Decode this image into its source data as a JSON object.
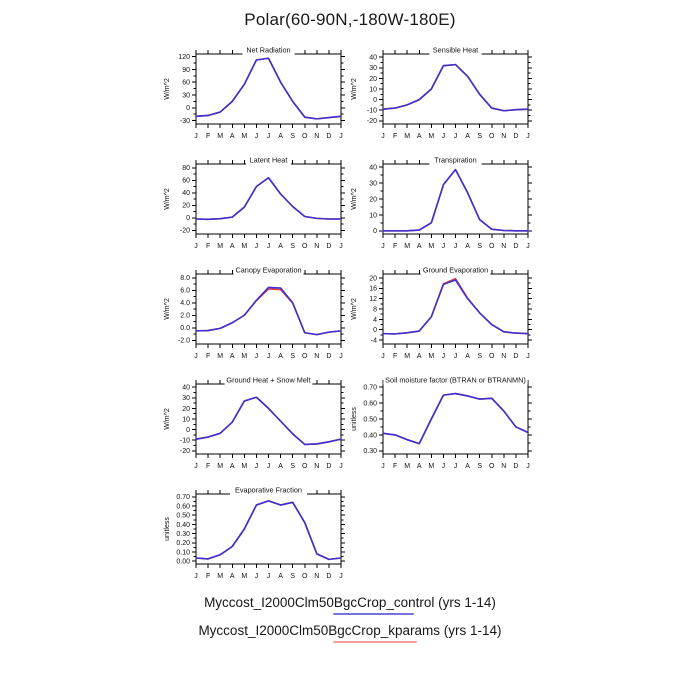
{
  "page": {
    "title": "Polar(60-90N,-180W-180E)",
    "background": "#ffffff"
  },
  "colors": {
    "control": "#3f2fd0",
    "kparams": "#e04040",
    "axis": "#000000"
  },
  "months": [
    "J",
    "F",
    "M",
    "A",
    "M",
    "J",
    "J",
    "A",
    "S",
    "O",
    "N",
    "D",
    "J"
  ],
  "legend": [
    {
      "label": "Myccost_I2000Clm50BgcCrop_control (yrs 1-14)",
      "line_color": "#7673e0"
    },
    {
      "label": "Myccost_I2000Clm50BgcCrop_kparams (yrs 1-14)",
      "line_color": "#ff9c9c"
    }
  ],
  "chart_data": [
    {
      "type": "line",
      "title": "Net Radiation",
      "ylabel": "W/m^2",
      "grid": {
        "row": 1,
        "col": 1
      },
      "ylim": [
        -38,
        126
      ],
      "yticks": [
        -30,
        0,
        30,
        60,
        90,
        120
      ],
      "ytick_labels": [
        "-30",
        "0",
        "30",
        "60",
        "90",
        "120"
      ],
      "series": [
        {
          "name": "control",
          "values": [
            -20,
            -18,
            -10,
            15,
            55,
            112,
            116,
            60,
            15,
            -22,
            -26,
            -23,
            -20
          ]
        },
        {
          "name": "kparams",
          "values": [
            -20,
            -18,
            -10,
            15,
            55,
            112,
            116,
            60,
            15,
            -22,
            -26,
            -23,
            -20
          ]
        }
      ]
    },
    {
      "type": "line",
      "title": "Sensible Heat",
      "ylabel": "W/m^2",
      "grid": {
        "row": 1,
        "col": 2
      },
      "ylim": [
        -23,
        43
      ],
      "yticks": [
        -20,
        -10,
        0,
        10,
        20,
        30,
        40
      ],
      "ytick_labels": [
        "-20",
        "-10",
        "0",
        "10",
        "20",
        "30",
        "40"
      ],
      "series": [
        {
          "name": "control",
          "values": [
            -9,
            -8,
            -5,
            0,
            10,
            32,
            33,
            22,
            5,
            -8,
            -10.5,
            -9.5,
            -9
          ]
        },
        {
          "name": "kparams",
          "values": [
            -9,
            -8,
            -5,
            0,
            10,
            32,
            33,
            22,
            5,
            -8,
            -10.5,
            -9.5,
            -9
          ]
        }
      ]
    },
    {
      "type": "line",
      "title": "Latent Heat",
      "ylabel": "W/m^2",
      "grid": {
        "row": 2,
        "col": 1
      },
      "ylim": [
        -26,
        86
      ],
      "yticks": [
        -20,
        0,
        20,
        40,
        60,
        80
      ],
      "ytick_labels": [
        "-20",
        "0",
        "20",
        "40",
        "60",
        "80"
      ],
      "series": [
        {
          "name": "control",
          "values": [
            -2,
            -2.5,
            -1.5,
            1,
            17,
            50,
            64,
            38,
            18,
            2,
            -1,
            -2,
            -2
          ]
        },
        {
          "name": "kparams",
          "values": [
            -2,
            -2.5,
            -1.5,
            1,
            17,
            50,
            64,
            38,
            18,
            2,
            -1,
            -2,
            -2
          ]
        }
      ]
    },
    {
      "type": "line",
      "title": "Transpiration",
      "ylabel": "W/m^2",
      "grid": {
        "row": 2,
        "col": 2
      },
      "ylim": [
        -2,
        42
      ],
      "yticks": [
        0,
        10,
        20,
        30,
        40
      ],
      "ytick_labels": [
        "0",
        "10",
        "20",
        "30",
        "40"
      ],
      "series": [
        {
          "name": "control",
          "values": [
            0,
            0,
            0,
            0.5,
            5,
            29,
            38.5,
            24,
            7,
            1,
            0.2,
            0,
            0
          ]
        },
        {
          "name": "kparams",
          "values": [
            0,
            0,
            0,
            0.5,
            5,
            29,
            38.5,
            24,
            7,
            1,
            0.2,
            0,
            0
          ]
        }
      ]
    },
    {
      "type": "line",
      "title": "Canopy Evaporation",
      "ylabel": "W/m^2",
      "grid": {
        "row": 3,
        "col": 1
      },
      "ylim": [
        -2.6,
        8.6
      ],
      "yticks": [
        -2,
        0,
        2,
        4,
        6,
        8
      ],
      "ytick_labels": [
        "-2.0",
        "0.0",
        "2.0",
        "4.0",
        "6.0",
        "8.0"
      ],
      "series": [
        {
          "name": "control",
          "values": [
            -0.5,
            -0.45,
            -0.1,
            0.8,
            2.0,
            4.4,
            6.45,
            6.35,
            4.0,
            -0.8,
            -1.1,
            -0.7,
            -0.5
          ]
        },
        {
          "name": "kparams",
          "values": [
            -0.5,
            -0.45,
            -0.1,
            0.8,
            2.0,
            4.35,
            6.2,
            6.1,
            3.95,
            -0.8,
            -1.1,
            -0.7,
            -0.5
          ]
        }
      ]
    },
    {
      "type": "line",
      "title": "Ground Evaporation",
      "ylabel": "W/m^2",
      "grid": {
        "row": 3,
        "col": 2
      },
      "ylim": [
        -5.5,
        21.5
      ],
      "yticks": [
        -4,
        0,
        4,
        8,
        12,
        16,
        20
      ],
      "ytick_labels": [
        "-4",
        "0",
        "4",
        "8",
        "12",
        "16",
        "20"
      ],
      "series": [
        {
          "name": "control",
          "values": [
            -1.5,
            -1.6,
            -1.2,
            -0.5,
            5,
            17.5,
            19.2,
            12,
            6.5,
            2,
            -0.8,
            -1.3,
            -1.5
          ]
        },
        {
          "name": "kparams",
          "values": [
            -1.5,
            -1.6,
            -1.2,
            -0.5,
            5,
            17.7,
            19.7,
            12.2,
            6.5,
            2,
            -0.8,
            -1.3,
            -1.5
          ]
        }
      ]
    },
    {
      "type": "line",
      "title": "Ground Heat + Snow Melt",
      "ylabel": "W/m^2",
      "grid": {
        "row": 4,
        "col": 1
      },
      "ylim": [
        -23,
        43
      ],
      "yticks": [
        -20,
        -10,
        0,
        10,
        20,
        30,
        40
      ],
      "ytick_labels": [
        "-20",
        "-10",
        "0",
        "10",
        "20",
        "30",
        "40"
      ],
      "series": [
        {
          "name": "control",
          "values": [
            -9,
            -7,
            -3.5,
            7,
            27,
            30.5,
            20,
            8,
            -4,
            -14,
            -13.5,
            -11.5,
            -9
          ]
        },
        {
          "name": "kparams",
          "values": [
            -9,
            -7,
            -3.5,
            7,
            27,
            30.5,
            20,
            8,
            -4,
            -14,
            -13.5,
            -11.5,
            -9
          ]
        }
      ]
    },
    {
      "type": "line",
      "title": "Soil moisture factor (BTRAN or BTRANMN)",
      "ylabel": "unitless",
      "grid": {
        "row": 4,
        "col": 2
      },
      "ylim": [
        0.28,
        0.72
      ],
      "yticks": [
        0.3,
        0.4,
        0.5,
        0.6,
        0.7
      ],
      "ytick_labels": [
        "0.30",
        "0.40",
        "0.50",
        "0.60",
        "0.70"
      ],
      "series": [
        {
          "name": "control",
          "values": [
            0.41,
            0.4,
            0.37,
            0.345,
            0.5,
            0.65,
            0.66,
            0.645,
            0.625,
            0.63,
            0.55,
            0.45,
            0.415
          ]
        },
        {
          "name": "kparams",
          "values": [
            0.41,
            0.4,
            0.37,
            0.345,
            0.5,
            0.65,
            0.66,
            0.645,
            0.625,
            0.63,
            0.55,
            0.45,
            0.415
          ]
        }
      ]
    },
    {
      "type": "line",
      "title": "Evaporative Fraction",
      "ylabel": "unitless",
      "grid": {
        "row": 5,
        "col": 1
      },
      "ylim": [
        -0.03,
        0.73
      ],
      "yticks": [
        0.0,
        0.1,
        0.2,
        0.3,
        0.4,
        0.5,
        0.6,
        0.7
      ],
      "ytick_labels": [
        "0.00",
        "0.10",
        "0.20",
        "0.30",
        "0.40",
        "0.50",
        "0.60",
        "0.70"
      ],
      "series": [
        {
          "name": "control",
          "values": [
            0.035,
            0.025,
            0.07,
            0.16,
            0.35,
            0.61,
            0.655,
            0.61,
            0.64,
            0.42,
            0.08,
            0.02,
            0.035
          ]
        },
        {
          "name": "kparams",
          "values": [
            0.035,
            0.025,
            0.07,
            0.16,
            0.35,
            0.61,
            0.655,
            0.61,
            0.64,
            0.42,
            0.08,
            0.02,
            0.035
          ]
        }
      ]
    }
  ]
}
